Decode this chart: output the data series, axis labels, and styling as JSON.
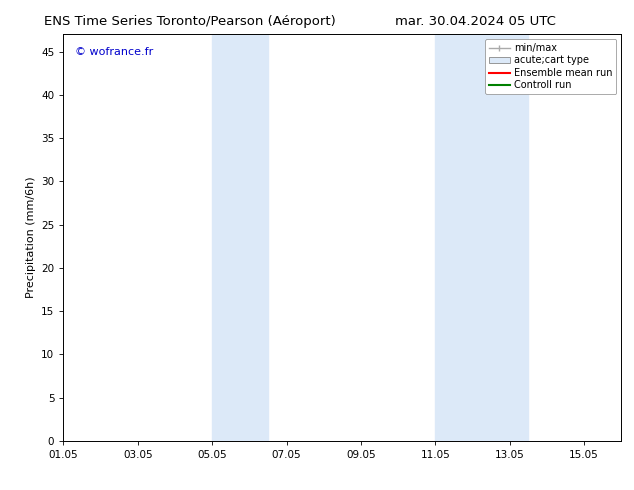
{
  "title_left": "ENS Time Series Toronto/Pearson (Aéroport)",
  "title_right": "mar. 30.04.2024 05 UTC",
  "ylabel": "Precipitation (mm/6h)",
  "watermark": "© wofrance.fr",
  "watermark_color": "#0000cc",
  "ylim": [
    0,
    47
  ],
  "yticks": [
    0,
    5,
    10,
    15,
    20,
    25,
    30,
    35,
    40,
    45
  ],
  "xtick_labels": [
    "01.05",
    "03.05",
    "05.05",
    "07.05",
    "09.05",
    "11.05",
    "13.05",
    "15.05"
  ],
  "xtick_positions": [
    0,
    2,
    4,
    6,
    8,
    10,
    12,
    14
  ],
  "xlim": [
    0,
    15
  ],
  "shaded_bands": [
    {
      "x_start": 4.0,
      "x_end": 5.5
    },
    {
      "x_start": 10.0,
      "x_end": 12.5
    }
  ],
  "shaded_color": "#dce9f8",
  "background_color": "#ffffff",
  "legend_items": [
    {
      "label": "min/max",
      "color": "#aaaaaa",
      "style": "line_with_ticks"
    },
    {
      "label": "acute;cart type",
      "color": "#dce9f8",
      "style": "filled_box"
    },
    {
      "label": "Ensemble mean run",
      "color": "#ff0000",
      "style": "line"
    },
    {
      "label": "Controll run",
      "color": "#008000",
      "style": "line"
    }
  ],
  "border_color": "#000000",
  "tick_color": "#000000",
  "font_size_title": 9.5,
  "font_size_labels": 8,
  "font_size_ticks": 7.5,
  "font_size_legend": 7,
  "font_size_watermark": 8
}
